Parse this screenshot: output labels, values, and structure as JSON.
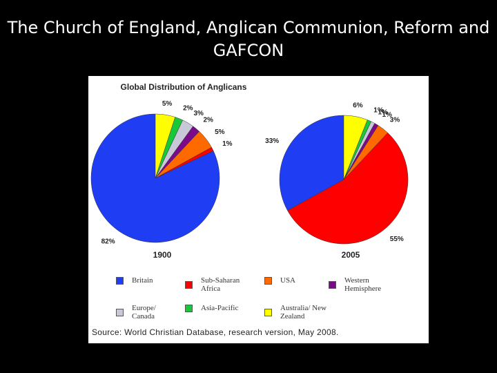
{
  "slide_title": "The Church of England, Anglican Communion, Reform and GAFCON",
  "chart_data": {
    "type": "pie",
    "title": "Global Distribution of Anglicans",
    "categories": [
      "Britain",
      "Sub-Saharan Africa",
      "USA",
      "Western Hemisphere",
      "Europe/ Canada",
      "Asia-Pacific",
      "Australia/ New Zealand"
    ],
    "colors": [
      "#1f3df2",
      "#ff0000",
      "#ff6a00",
      "#7a0a8a",
      "#c8c8d8",
      "#18c83a",
      "#ffff00"
    ],
    "series": [
      {
        "name": "1900",
        "values": [
          82,
          1,
          5,
          2,
          3,
          2,
          5
        ],
        "value_labels": [
          "82%",
          "1%",
          "5%",
          "2%",
          "3%",
          "2%",
          "5%"
        ]
      },
      {
        "name": "2005",
        "values": [
          33,
          55,
          3,
          1,
          1,
          1,
          6
        ],
        "value_labels": [
          "33%",
          "55%",
          "3%",
          "1%",
          "1%",
          "1%",
          "6%"
        ]
      }
    ],
    "source": "Source: World Christian Database, research version, May 2008."
  }
}
